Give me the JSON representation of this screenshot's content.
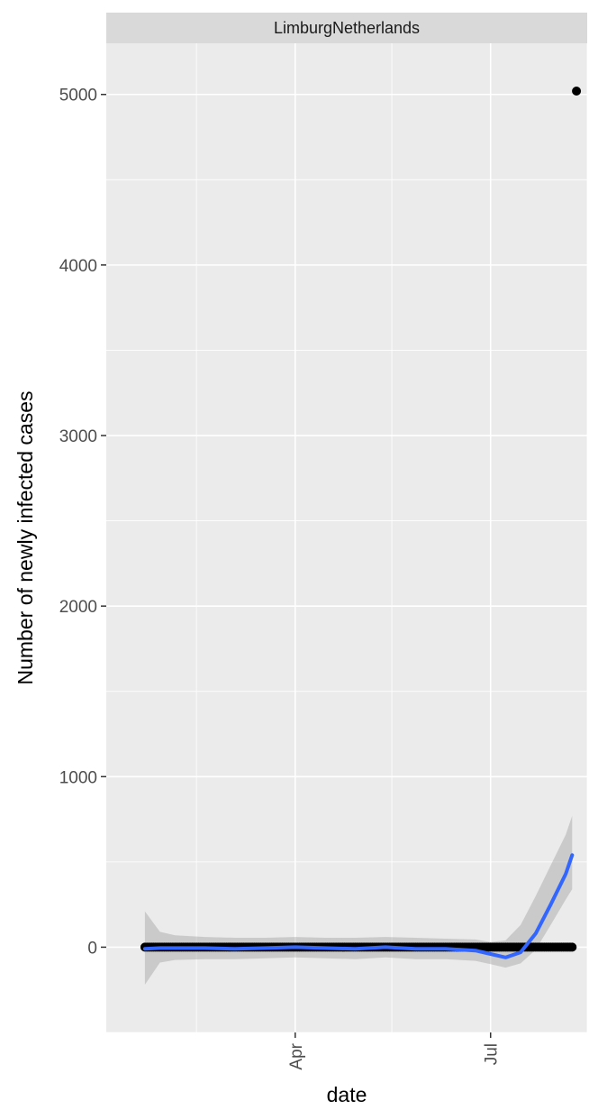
{
  "chart_data": {
    "type": "scatter",
    "facet_label": "LimburgNetherlands",
    "xlabel": "date",
    "ylabel": "Number of newly infected cases",
    "xlim": [
      "2020-01-04",
      "2020-08-15"
    ],
    "ylim": [
      -500,
      5300
    ],
    "x_ticks": [
      {
        "date": "2020-04-01",
        "label": "Apr"
      },
      {
        "date": "2020-07-01",
        "label": "Jul"
      }
    ],
    "x_minor_ticks": [
      "2020-02-15",
      "2020-05-16",
      "2020-08-15"
    ],
    "y_ticks": [
      0,
      1000,
      2000,
      3000,
      4000,
      5000
    ],
    "y_minor_ticks": [
      -500,
      500,
      1500,
      2500,
      3500,
      4500
    ],
    "points": {
      "start_date": "2020-01-22",
      "end_date": "2020-08-08",
      "baseline_value": 0,
      "outliers": [
        {
          "date": "2020-08-10",
          "value": 5020
        }
      ]
    },
    "smooth": {
      "color": "#3366FF",
      "band_color": "#999999",
      "points": [
        {
          "date": "2020-01-22",
          "y": -10,
          "lo": -220,
          "hi": 210
        },
        {
          "date": "2020-01-29",
          "y": -5,
          "lo": -90,
          "hi": 90
        },
        {
          "date": "2020-02-05",
          "y": -5,
          "lo": -75,
          "hi": 70
        },
        {
          "date": "2020-02-19",
          "y": -5,
          "lo": -70,
          "hi": 60
        },
        {
          "date": "2020-03-04",
          "y": -10,
          "lo": -70,
          "hi": 55
        },
        {
          "date": "2020-03-18",
          "y": -5,
          "lo": -65,
          "hi": 55
        },
        {
          "date": "2020-04-01",
          "y": 0,
          "lo": -60,
          "hi": 60
        },
        {
          "date": "2020-04-15",
          "y": -5,
          "lo": -65,
          "hi": 55
        },
        {
          "date": "2020-04-29",
          "y": -10,
          "lo": -70,
          "hi": 55
        },
        {
          "date": "2020-05-13",
          "y": 0,
          "lo": -60,
          "hi": 60
        },
        {
          "date": "2020-05-27",
          "y": -10,
          "lo": -70,
          "hi": 55
        },
        {
          "date": "2020-06-10",
          "y": -10,
          "lo": -70,
          "hi": 50
        },
        {
          "date": "2020-06-24",
          "y": -20,
          "lo": -80,
          "hi": 45
        },
        {
          "date": "2020-07-01",
          "y": -40,
          "lo": -100,
          "hi": 30
        },
        {
          "date": "2020-07-08",
          "y": -60,
          "lo": -120,
          "hi": 40
        },
        {
          "date": "2020-07-15",
          "y": -30,
          "lo": -95,
          "hi": 130
        },
        {
          "date": "2020-07-22",
          "y": 80,
          "lo": -15,
          "hi": 300
        },
        {
          "date": "2020-07-29",
          "y": 250,
          "lo": 130,
          "hi": 480
        },
        {
          "date": "2020-08-05",
          "y": 430,
          "lo": 280,
          "hi": 660
        },
        {
          "date": "2020-08-08",
          "y": 540,
          "lo": 340,
          "hi": 770
        }
      ]
    },
    "grid": true
  }
}
